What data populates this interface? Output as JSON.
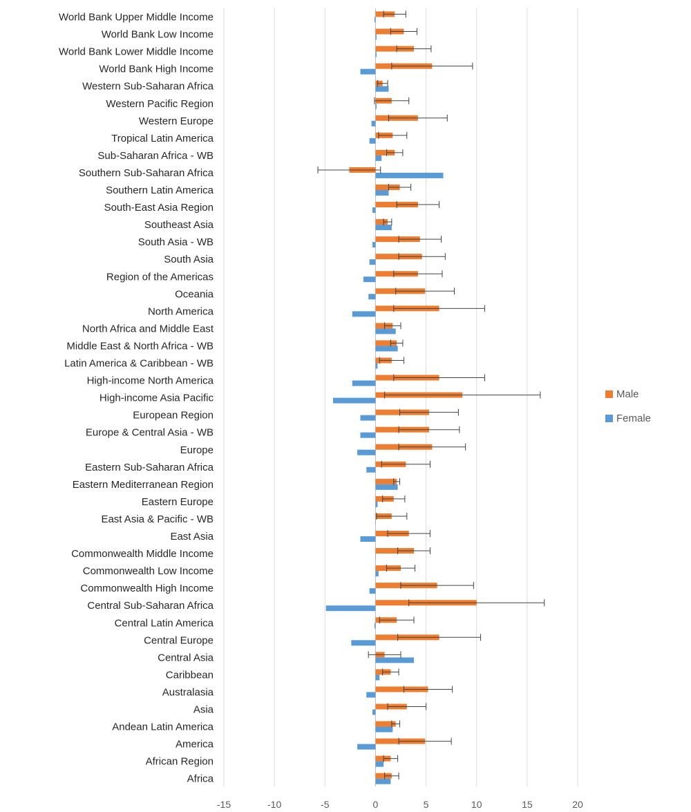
{
  "chart_data": {
    "type": "bar",
    "orientation": "horizontal",
    "categories": [
      "World Bank Upper Middle Income",
      "World Bank Low Income",
      "World Bank Lower Middle Income",
      "World Bank High Income",
      "Western Sub-Saharan Africa",
      "Western Pacific Region",
      "Western Europe",
      "Tropical Latin America",
      "Sub-Saharan Africa - WB",
      "Southern Sub-Saharan Africa",
      "Southern Latin America",
      "South-East Asia Region",
      "Southeast Asia",
      "South Asia - WB",
      "South Asia",
      "Region of the Americas",
      "Oceania",
      "North America",
      "North Africa and Middle East",
      "Middle East & North Africa - WB",
      "Latin America & Caribbean - WB",
      "High-income North America",
      "High-income Asia Pacific",
      "European Region",
      "Europe & Central Asia - WB",
      "Europe",
      "Eastern Sub-Saharan Africa",
      "Eastern Mediterranean Region",
      "Eastern Europe",
      "East Asia & Pacific - WB",
      "East Asia",
      "Commonwealth Middle Income",
      "Commonwealth Low Income",
      "Commonwealth High Income",
      "Central Sub-Saharan Africa",
      "Central Latin America",
      "Central Europe",
      "Central Asia",
      "Caribbean",
      "Australasia",
      "Asia",
      "Andean Latin America",
      "America",
      "African Region",
      "Africa"
    ],
    "series": [
      {
        "name": "Male",
        "color": "#ED7D31",
        "values": [
          1.9,
          2.8,
          3.8,
          5.6,
          0.7,
          1.6,
          4.2,
          1.7,
          1.9,
          -2.6,
          2.4,
          4.2,
          1.2,
          4.4,
          4.6,
          4.2,
          4.9,
          6.3,
          1.7,
          2.1,
          1.6,
          6.3,
          8.6,
          5.3,
          5.3,
          5.6,
          3.0,
          2.1,
          1.8,
          1.6,
          3.3,
          3.8,
          2.5,
          6.1,
          10.0,
          2.1,
          6.3,
          0.9,
          1.5,
          5.2,
          3.1,
          2.0,
          4.9,
          1.5,
          1.6
        ],
        "errors": [
          1.1,
          1.3,
          1.7,
          4.0,
          0.5,
          1.7,
          2.9,
          1.4,
          0.8,
          3.1,
          1.1,
          2.1,
          0.4,
          2.1,
          2.3,
          2.4,
          2.9,
          4.5,
          0.8,
          0.6,
          1.2,
          4.5,
          7.7,
          2.9,
          3.0,
          3.3,
          2.4,
          0.3,
          1.1,
          1.5,
          2.1,
          1.6,
          1.4,
          3.6,
          6.7,
          1.7,
          4.1,
          1.6,
          0.8,
          2.4,
          1.9,
          0.4,
          2.6,
          0.7,
          0.7
        ]
      },
      {
        "name": "Female",
        "color": "#5B9BD5",
        "values": [
          -0.1,
          0.1,
          0.1,
          -1.5,
          1.3,
          0.1,
          -0.4,
          -0.6,
          0.6,
          6.7,
          1.3,
          -0.3,
          1.6,
          -0.3,
          -0.6,
          -1.2,
          -0.7,
          -2.3,
          2.0,
          2.2,
          0.2,
          -2.3,
          -4.2,
          -1.5,
          -1.5,
          -1.8,
          -0.9,
          2.2,
          0.2,
          0.0,
          -1.5,
          0.0,
          0.3,
          -0.6,
          -4.9,
          -0.1,
          -2.4,
          3.8,
          0.4,
          -0.9,
          -0.3,
          1.7,
          -1.8,
          0.8,
          1.5
        ]
      }
    ],
    "xlim": [
      -15,
      20
    ],
    "xticks": [
      -15,
      -10,
      -5,
      0,
      5,
      10,
      15,
      20
    ],
    "grid": "vertical",
    "legend": "right",
    "xlabel": "",
    "ylabel": "",
    "title": ""
  }
}
